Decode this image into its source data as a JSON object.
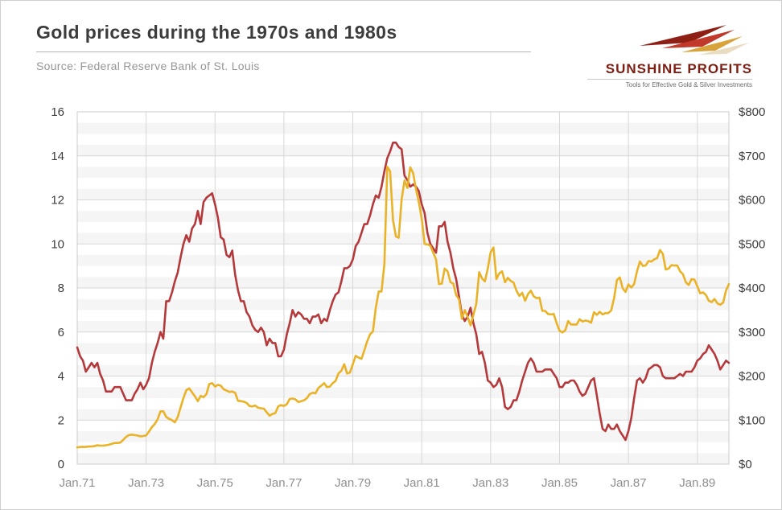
{
  "header": {
    "title": "Gold prices during the 1970s and 1980s",
    "source": "Source: Federal Reserve Bank of St. Louis"
  },
  "logo": {
    "name": "SUNSHINE PROFITS",
    "tagline": "Tools for Effective Gold & Silver Investments"
  },
  "chart_data": {
    "type": "line",
    "title": "Gold prices during the 1970s and 1980s",
    "x_start": "Jan 1971",
    "x_end": "Dec 1989",
    "x_interval": "monthly",
    "x_tick_labels": [
      "Jan.71",
      "Jan.73",
      "Jan.75",
      "Jan.77",
      "Jan.79",
      "Jan.81",
      "Jan.83",
      "Jan.85",
      "Jan.87",
      "Jan.89"
    ],
    "x_tick_month_index": [
      0,
      24,
      48,
      72,
      96,
      120,
      144,
      168,
      192,
      216
    ],
    "left_axis": {
      "min": 0,
      "max": 16,
      "step": 2,
      "ticks": [
        0,
        2,
        4,
        6,
        8,
        10,
        12,
        14,
        16
      ]
    },
    "right_axis": {
      "min": 0,
      "max": 800,
      "step": 100,
      "tick_labels": [
        "$0",
        "$100",
        "$200",
        "$300",
        "$400",
        "$500",
        "$600",
        "$700",
        "$800"
      ]
    },
    "grid": true,
    "legend": "none",
    "series": [
      {
        "name": "red line (left axis)",
        "axis": "left",
        "color": "#b5393b",
        "values": [
          5.3,
          4.9,
          4.7,
          4.2,
          4.4,
          4.6,
          4.4,
          4.6,
          4.1,
          3.8,
          3.3,
          3.3,
          3.3,
          3.5,
          3.5,
          3.5,
          3.2,
          2.9,
          2.9,
          2.9,
          3.2,
          3.4,
          3.7,
          3.4,
          3.6,
          3.9,
          4.6,
          5.1,
          5.5,
          6.0,
          5.7,
          7.4,
          7.4,
          7.8,
          8.3,
          8.7,
          9.4,
          10.0,
          10.4,
          10.1,
          10.7,
          10.9,
          11.5,
          10.9,
          11.9,
          12.1,
          12.2,
          12.3,
          11.8,
          11.2,
          10.3,
          10.2,
          9.5,
          9.4,
          9.7,
          8.6,
          7.9,
          7.4,
          7.4,
          6.9,
          6.7,
          6.3,
          6.1,
          6.0,
          6.2,
          6.0,
          5.4,
          5.7,
          5.5,
          5.5,
          4.9,
          4.9,
          5.2,
          5.9,
          6.4,
          7.0,
          6.7,
          6.9,
          6.8,
          6.6,
          6.6,
          6.4,
          6.7,
          6.7,
          6.8,
          6.4,
          6.6,
          6.5,
          7.0,
          7.4,
          7.7,
          7.8,
          8.3,
          8.9,
          8.9,
          9.0,
          9.3,
          9.9,
          10.1,
          10.5,
          10.9,
          10.9,
          11.3,
          11.8,
          12.2,
          12.1,
          12.6,
          13.3,
          13.9,
          14.2,
          14.6,
          14.6,
          14.4,
          14.3,
          13.1,
          12.9,
          12.6,
          12.7,
          12.6,
          12.4,
          11.8,
          11.4,
          10.5,
          10.0,
          9.8,
          9.6,
          10.8,
          10.8,
          11.0,
          10.1,
          9.6,
          8.9,
          8.4,
          7.6,
          6.8,
          6.5,
          6.7,
          7.1,
          6.4,
          5.9,
          5.0,
          5.1,
          4.6,
          3.8,
          3.7,
          3.5,
          3.6,
          3.9,
          3.5,
          2.6,
          2.5,
          2.6,
          2.9,
          2.9,
          3.3,
          3.8,
          4.2,
          4.6,
          4.8,
          4.6,
          4.2,
          4.2,
          4.2,
          4.3,
          4.3,
          4.3,
          4.1,
          3.9,
          3.5,
          3.5,
          3.7,
          3.7,
          3.8,
          3.8,
          3.6,
          3.3,
          3.1,
          3.2,
          3.5,
          3.8,
          3.9,
          3.1,
          2.3,
          1.6,
          1.5,
          1.8,
          1.6,
          1.6,
          1.8,
          1.5,
          1.3,
          1.1,
          1.5,
          2.1,
          3.0,
          3.8,
          3.9,
          3.7,
          3.9,
          4.3,
          4.4,
          4.5,
          4.5,
          4.4,
          4.0,
          3.9,
          3.9,
          3.9,
          3.9,
          4.0,
          4.1,
          4.0,
          4.2,
          4.2,
          4.2,
          4.4,
          4.7,
          4.8,
          5.0,
          5.1,
          5.4,
          5.2,
          5.0,
          4.7,
          4.3,
          4.5,
          4.7,
          4.6
        ]
      },
      {
        "name": "gold line (right axis, $)",
        "axis": "right",
        "color": "#eab226",
        "values": [
          38,
          39,
          39,
          39,
          40,
          40,
          41,
          43,
          42,
          42,
          43,
          44,
          46,
          48,
          48,
          49,
          55,
          62,
          66,
          67,
          66,
          65,
          63,
          64,
          65,
          74,
          84,
          91,
          102,
          120,
          120,
          107,
          103,
          100,
          95,
          107,
          129,
          150,
          168,
          172,
          163,
          154,
          143,
          155,
          152,
          159,
          182,
          184,
          176,
          180,
          178,
          170,
          167,
          164,
          165,
          162,
          144,
          143,
          142,
          139,
          132,
          131,
          133,
          128,
          127,
          126,
          118,
          110,
          114,
          116,
          131,
          134,
          132,
          136,
          148,
          149,
          147,
          141,
          143,
          145,
          150,
          159,
          162,
          161,
          173,
          178,
          184,
          175,
          176,
          184,
          189,
          206,
          212,
          227,
          206,
          208,
          227,
          246,
          242,
          239,
          258,
          279,
          295,
          301,
          355,
          392,
          392,
          455,
          675,
          665,
          554,
          517,
          514,
          601,
          644,
          627,
          674,
          661,
          624,
          595,
          557,
          500,
          499,
          496,
          480,
          465,
          409,
          410,
          444,
          438,
          413,
          410,
          384,
          374,
          330,
          350,
          334,
          315,
          339,
          364,
          436,
          422,
          415,
          444,
          481,
          492,
          420,
          433,
          438,
          413,
          423,
          416,
          412,
          394,
          382,
          389,
          371,
          386,
          394,
          381,
          377,
          378,
          348,
          348,
          341,
          340,
          341,
          320,
          303,
          299,
          304,
          325,
          317,
          317,
          317,
          329,
          324,
          326,
          325,
          321,
          345,
          339,
          346,
          340,
          343,
          343,
          349,
          377,
          418,
          424,
          399,
          391,
          408,
          401,
          409,
          438,
          460,
          450,
          451,
          461,
          460,
          465,
          468,
          486,
          477,
          442,
          444,
          452,
          451,
          451,
          438,
          431,
          413,
          407,
          420,
          419,
          404,
          388,
          390,
          384,
          371,
          368,
          375,
          365,
          362,
          367,
          394,
          409
        ]
      }
    ],
    "colors": {
      "grid": "#d7d7d7",
      "band": "#f5f5f5",
      "axis_text": "#3d3d3d",
      "x_text": "#8f8f8f",
      "plot_border": "#cccccc",
      "logo_dark_red": "#8e1f15",
      "logo_red": "#c0392b",
      "logo_gold": "#d8a33a",
      "logo_cream": "#e9dcc0"
    }
  }
}
